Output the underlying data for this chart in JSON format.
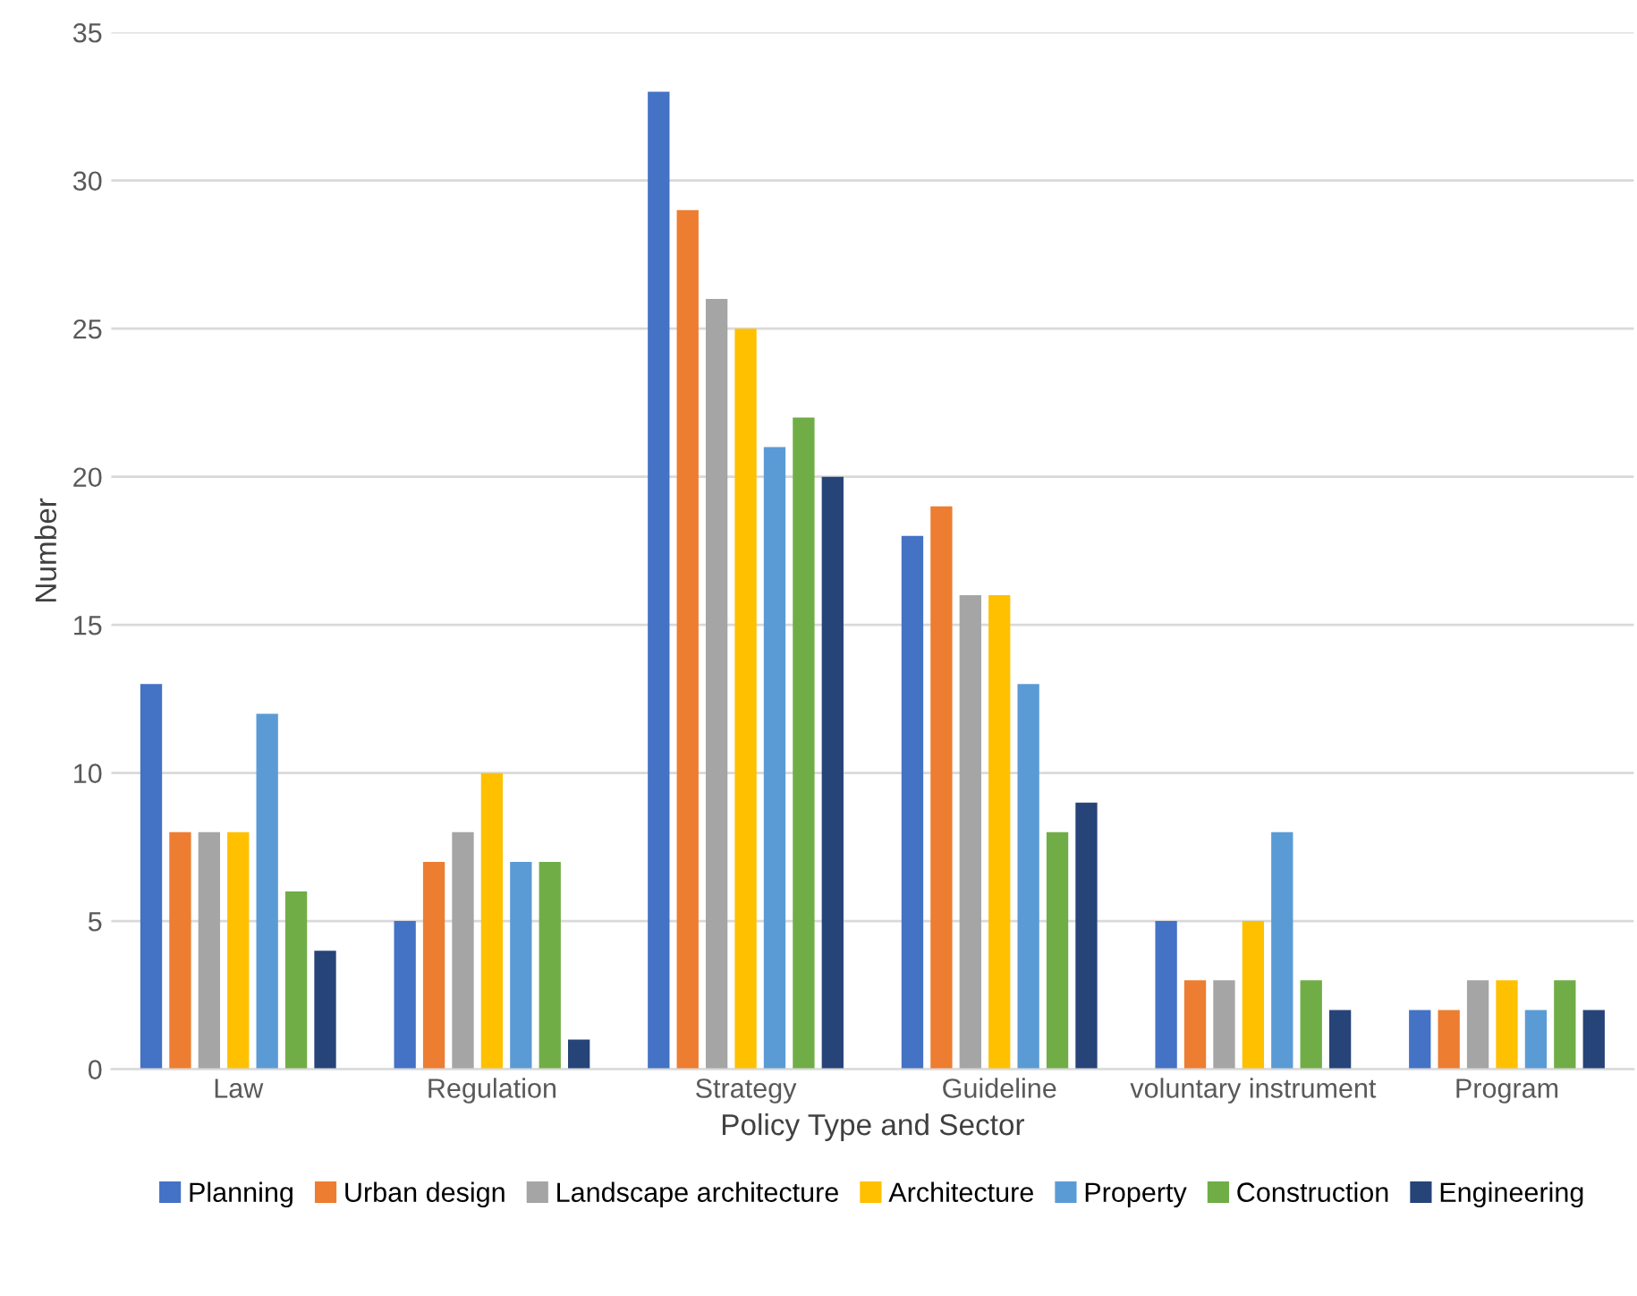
{
  "chart_data": {
    "type": "bar",
    "xlabel": "Policy Type and Sector",
    "ylabel": "Number",
    "categories": [
      "Law",
      "Regulation",
      "Strategy",
      "Guideline",
      "voluntary instrument",
      "Program"
    ],
    "series": [
      {
        "name": "Planning",
        "color": "#4472c4",
        "values": [
          13,
          5,
          33,
          18,
          5,
          2
        ]
      },
      {
        "name": "Urban design",
        "color": "#ed7d31",
        "values": [
          8,
          7,
          29,
          19,
          3,
          2
        ]
      },
      {
        "name": "Landscape architecture",
        "color": "#a5a5a5",
        "values": [
          8,
          8,
          26,
          16,
          3,
          3
        ]
      },
      {
        "name": "Architecture",
        "color": "#ffc000",
        "values": [
          8,
          10,
          25,
          16,
          5,
          3
        ]
      },
      {
        "name": "Property",
        "color": "#5b9bd5",
        "values": [
          12,
          7,
          21,
          13,
          8,
          2
        ]
      },
      {
        "name": "Construction",
        "color": "#70ad47",
        "values": [
          6,
          7,
          22,
          8,
          3,
          3
        ]
      },
      {
        "name": "Engineering",
        "color": "#264478",
        "values": [
          4,
          1,
          20,
          9,
          2,
          2
        ]
      }
    ],
    "ylim": [
      0,
      35
    ],
    "yticks": [
      0,
      5,
      10,
      15,
      20,
      25,
      30,
      35
    ],
    "grid": "y",
    "legend": "bottom"
  }
}
